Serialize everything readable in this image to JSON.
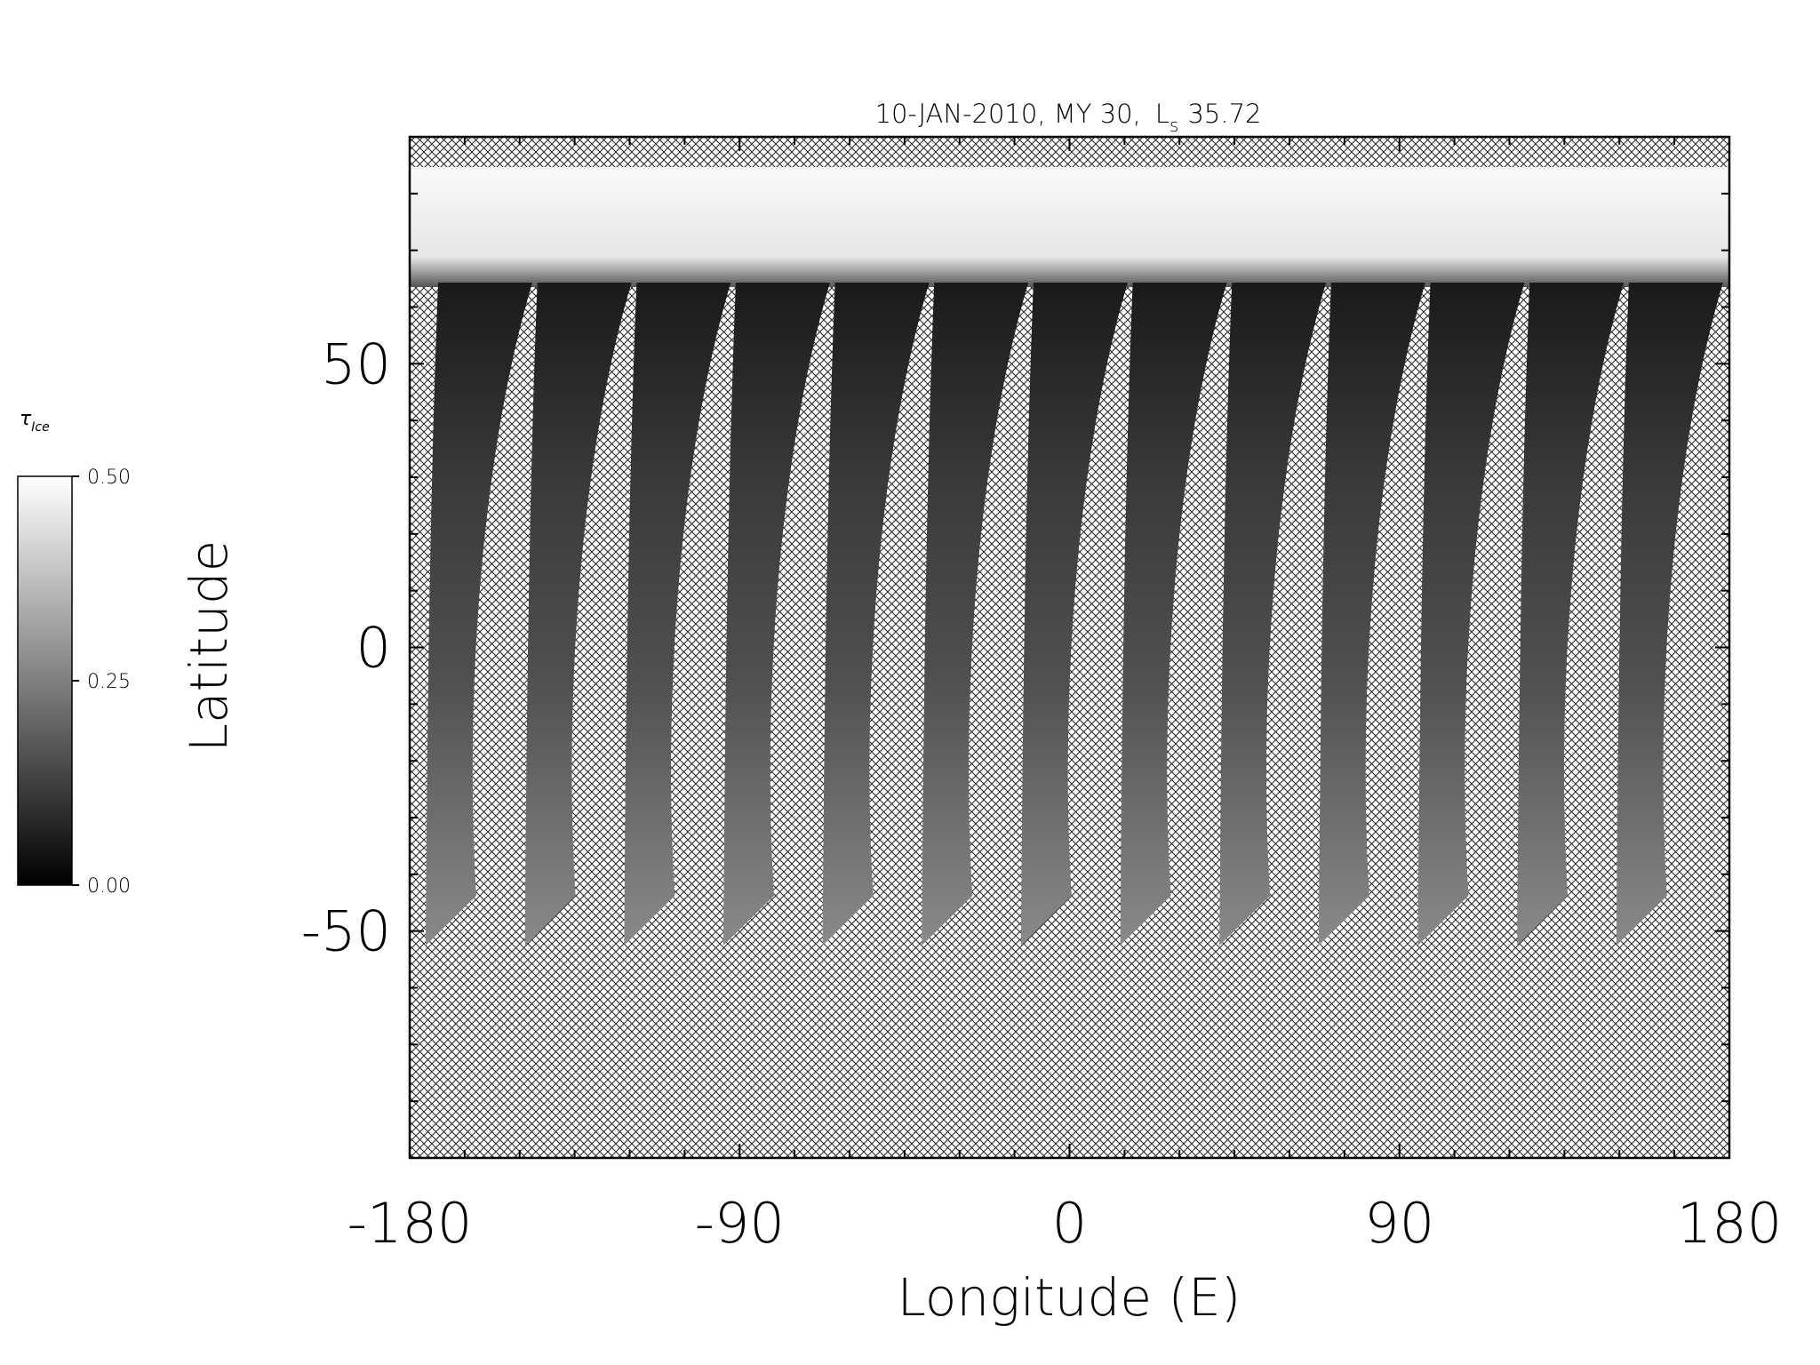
{
  "chart_data": {
    "type": "map",
    "title": "10-JAN-2010, MY 30,",
    "title_symbol": "L",
    "title_subscript": "s",
    "title_value": "35.72",
    "x_label": "Longitude (E)",
    "y_label": "Latitude",
    "xlim": [
      -180,
      180
    ],
    "ylim": [
      -90,
      90
    ],
    "xticks": [
      -180,
      -90,
      0,
      90,
      180
    ],
    "yticks": [
      -50,
      0,
      50
    ],
    "xminorticks": [
      -165,
      -150,
      -135,
      -120,
      -105,
      -75,
      -60,
      -45,
      -30,
      -15,
      15,
      30,
      45,
      60,
      75,
      105,
      120,
      135,
      150,
      165
    ],
    "yminorticks": [
      -80,
      -70,
      -60,
      -40,
      -30,
      -20,
      -10,
      10,
      20,
      30,
      40,
      60,
      70,
      80
    ],
    "colorbar": {
      "label": "τ",
      "label_subscript": "Ice",
      "lim": [
        0,
        0.5
      ],
      "color_low": "#000000",
      "color_high": "#ffffff",
      "ticks": [
        {
          "value": 0,
          "label": "0.00"
        },
        {
          "value": 0.25,
          "label": "0.25"
        },
        {
          "value": 0.5,
          "label": "0.50"
        }
      ]
    }
  }
}
